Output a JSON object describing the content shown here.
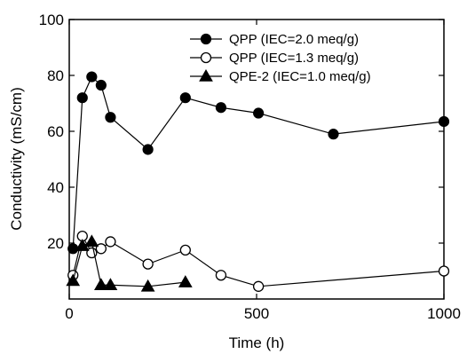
{
  "chart_data": {
    "type": "line",
    "title": "",
    "xlabel": "Time (h)",
    "ylabel": "Conductivity (mS/cm)",
    "xlim": [
      0,
      1000
    ],
    "ylim": [
      0,
      100
    ],
    "x_ticks": [
      0,
      500,
      1000
    ],
    "y_ticks": [
      20,
      40,
      60,
      80,
      100
    ],
    "x_tick_labels": [
      "0",
      "500",
      "1000"
    ],
    "y_tick_labels": [
      "20",
      "40",
      "60",
      "80",
      "100"
    ],
    "grid": false,
    "legend_position": "top-right",
    "series": [
      {
        "name": "QPP (IEC=2.0 meq/g)",
        "marker": "filled-circle",
        "color": "#000000",
        "x": [
          10,
          35,
          60,
          85,
          110,
          210,
          310,
          405,
          505,
          705,
          1000
        ],
        "y": [
          18,
          72,
          79.5,
          76.5,
          65,
          53.5,
          72,
          68.5,
          66.5,
          59,
          63.5
        ]
      },
      {
        "name": "QPP (IEC=1.3 meq/g)",
        "marker": "open-circle",
        "color": "#000000",
        "x": [
          10,
          35,
          60,
          85,
          110,
          210,
          310,
          405,
          505,
          1000
        ],
        "y": [
          8.5,
          22.5,
          16.5,
          18,
          20.5,
          12.5,
          17.5,
          8.5,
          4.5,
          10
        ]
      },
      {
        "name": "QPE-2 (IEC=1.0 meq/g)",
        "marker": "filled-triangle",
        "color": "#000000",
        "x": [
          10,
          35,
          60,
          85,
          110,
          210,
          310
        ],
        "y": [
          6.5,
          19,
          20.5,
          5,
          5,
          4.5,
          6
        ]
      }
    ]
  }
}
